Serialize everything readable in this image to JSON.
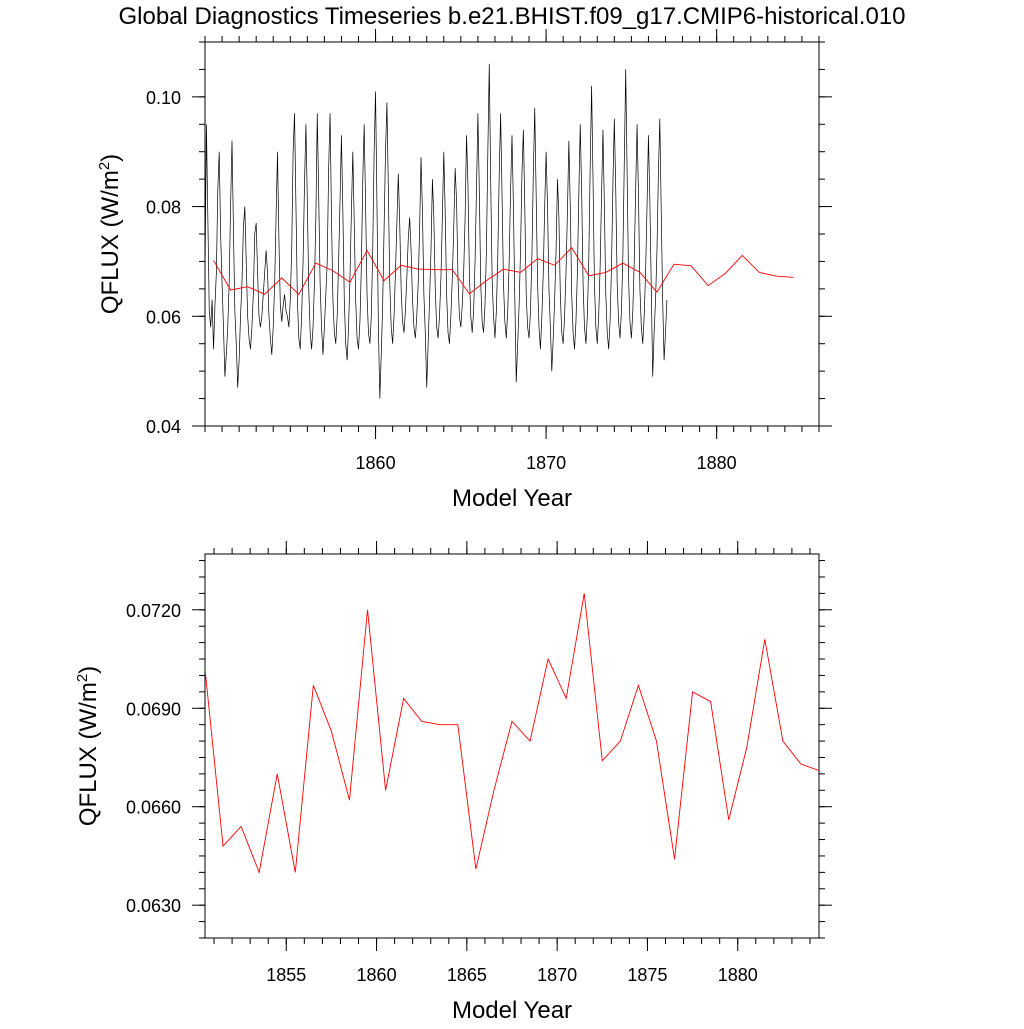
{
  "title": "Global Diagnostics Timeseries b.e21.BHIST.f09_g17.CMIP6-historical.010",
  "colors": {
    "monthly": "#000000",
    "annual": "#ff0000",
    "frame": "#000000"
  },
  "chart_data": [
    {
      "type": "line",
      "xlabel": "Model Year",
      "ylabel": "QFLUX (W/m²)",
      "ylabel_base": "QFLUX (W/m",
      "ylabel_sup": "2",
      "ylabel_close": ")",
      "xlim": [
        1850,
        1886
      ],
      "ylim": [
        0.04,
        0.11
      ],
      "x_ticks": [
        1860,
        1870,
        1880
      ],
      "x_tick_labels": [
        "1860",
        "1870",
        "1880"
      ],
      "y_ticks": [
        0.04,
        0.06,
        0.08,
        0.1
      ],
      "y_tick_labels": [
        "0.04",
        "0.06",
        "0.08",
        "0.10"
      ],
      "series": [
        {
          "kind": "monthly",
          "start_year": 1850,
          "step": 0.083333,
          "values": [
            0.067,
            0.095,
            0.078,
            0.061,
            0.058,
            0.063,
            0.054,
            0.062,
            0.068,
            0.083,
            0.09,
            0.075,
            0.066,
            0.058,
            0.049,
            0.053,
            0.058,
            0.066,
            0.08,
            0.092,
            0.076,
            0.061,
            0.055,
            0.047,
            0.052,
            0.06,
            0.066,
            0.076,
            0.08,
            0.07,
            0.06,
            0.056,
            0.054,
            0.058,
            0.064,
            0.075,
            0.077,
            0.068,
            0.06,
            0.058,
            0.06,
            0.064,
            0.068,
            0.072,
            0.068,
            0.06,
            0.056,
            0.053,
            0.058,
            0.066,
            0.078,
            0.09,
            0.074,
            0.062,
            0.059,
            0.062,
            0.064,
            0.061,
            0.06,
            0.058,
            0.063,
            0.072,
            0.09,
            0.097,
            0.08,
            0.063,
            0.056,
            0.054,
            0.06,
            0.07,
            0.084,
            0.095,
            0.081,
            0.065,
            0.057,
            0.054,
            0.058,
            0.066,
            0.078,
            0.097,
            0.082,
            0.066,
            0.058,
            0.053,
            0.058,
            0.064,
            0.07,
            0.087,
            0.097,
            0.078,
            0.063,
            0.057,
            0.055,
            0.06,
            0.07,
            0.081,
            0.093,
            0.079,
            0.063,
            0.055,
            0.052,
            0.058,
            0.067,
            0.079,
            0.09,
            0.077,
            0.063,
            0.056,
            0.054,
            0.059,
            0.069,
            0.085,
            0.095,
            0.08,
            0.064,
            0.057,
            0.055,
            0.06,
            0.072,
            0.09,
            0.101,
            0.08,
            0.058,
            0.045,
            0.053,
            0.062,
            0.076,
            0.09,
            0.099,
            0.083,
            0.066,
            0.058,
            0.055,
            0.06,
            0.068,
            0.077,
            0.086,
            0.077,
            0.065,
            0.059,
            0.057,
            0.061,
            0.067,
            0.074,
            0.078,
            0.072,
            0.063,
            0.058,
            0.056,
            0.06,
            0.066,
            0.076,
            0.089,
            0.079,
            0.064,
            0.057,
            0.047,
            0.055,
            0.063,
            0.072,
            0.085,
            0.078,
            0.065,
            0.058,
            0.056,
            0.06,
            0.067,
            0.078,
            0.09,
            0.079,
            0.064,
            0.057,
            0.055,
            0.06,
            0.067,
            0.076,
            0.087,
            0.081,
            0.067,
            0.06,
            0.058,
            0.062,
            0.068,
            0.078,
            0.093,
            0.084,
            0.068,
            0.06,
            0.057,
            0.061,
            0.07,
            0.083,
            0.097,
            0.083,
            0.066,
            0.059,
            0.057,
            0.062,
            0.072,
            0.09,
            0.106,
            0.085,
            0.067,
            0.06,
            0.056,
            0.061,
            0.071,
            0.086,
            0.097,
            0.082,
            0.066,
            0.059,
            0.056,
            0.061,
            0.07,
            0.083,
            0.093,
            0.08,
            0.063,
            0.048,
            0.055,
            0.062,
            0.072,
            0.086,
            0.094,
            0.08,
            0.064,
            0.058,
            0.056,
            0.061,
            0.071,
            0.086,
            0.098,
            0.082,
            0.066,
            0.058,
            0.054,
            0.06,
            0.068,
            0.08,
            0.09,
            0.08,
            0.065,
            0.058,
            0.05,
            0.056,
            0.063,
            0.072,
            0.085,
            0.078,
            0.064,
            0.057,
            0.055,
            0.06,
            0.068,
            0.079,
            0.092,
            0.08,
            0.064,
            0.057,
            0.054,
            0.059,
            0.068,
            0.082,
            0.095,
            0.083,
            0.066,
            0.058,
            0.055,
            0.06,
            0.07,
            0.087,
            0.102,
            0.085,
            0.066,
            0.058,
            0.055,
            0.06,
            0.069,
            0.082,
            0.094,
            0.08,
            0.064,
            0.057,
            0.054,
            0.059,
            0.069,
            0.084,
            0.096,
            0.083,
            0.066,
            0.059,
            0.056,
            0.061,
            0.071,
            0.088,
            0.105,
            0.086,
            0.067,
            0.059,
            0.056,
            0.061,
            0.07,
            0.083,
            0.095,
            0.082,
            0.065,
            0.058,
            0.055,
            0.06,
            0.068,
            0.08,
            0.093,
            0.081,
            0.065,
            0.049,
            0.057,
            0.063,
            0.072,
            0.086,
            0.096,
            0.079,
            0.063,
            0.052,
            0.057,
            0.063
          ]
        },
        {
          "kind": "annual",
          "x": [
            1850.5,
            1851.5,
            1852.5,
            1853.5,
            1854.5,
            1855.5,
            1856.5,
            1857.5,
            1858.5,
            1859.5,
            1860.5,
            1861.5,
            1862.5,
            1863.5,
            1864.5,
            1865.5,
            1866.5,
            1867.5,
            1868.5,
            1869.5,
            1870.5,
            1871.5,
            1872.5,
            1873.5,
            1874.5,
            1875.5,
            1876.5,
            1877.5,
            1878.5,
            1879.5,
            1880.5,
            1881.5,
            1882.5,
            1883.5,
            1884.5
          ],
          "values": [
            0.0702,
            0.0648,
            0.0654,
            0.064,
            0.067,
            0.064,
            0.0697,
            0.0683,
            0.0662,
            0.072,
            0.0665,
            0.0693,
            0.0686,
            0.0685,
            0.0685,
            0.0641,
            0.0665,
            0.0686,
            0.068,
            0.0705,
            0.0693,
            0.0725,
            0.0674,
            0.068,
            0.0697,
            0.068,
            0.0644,
            0.0695,
            0.0692,
            0.0656,
            0.0678,
            0.0711,
            0.068,
            0.0673,
            0.0671
          ]
        }
      ]
    },
    {
      "type": "line",
      "xlabel": "Model Year",
      "ylabel": "QFLUX (W/m²)",
      "ylabel_base": "QFLUX (W/m",
      "ylabel_sup": "2",
      "ylabel_close": ")",
      "xlim": [
        1850.5,
        1884.5
      ],
      "ylim": [
        0.062,
        0.0737
      ],
      "x_ticks": [
        1855,
        1860,
        1865,
        1870,
        1875,
        1880
      ],
      "x_tick_labels": [
        "1855",
        "1860",
        "1865",
        "1870",
        "1875",
        "1880"
      ],
      "y_ticks": [
        0.063,
        0.066,
        0.069,
        0.072
      ],
      "y_tick_labels": [
        "0.0630",
        "0.0660",
        "0.0690",
        "0.0720"
      ],
      "series": [
        {
          "kind": "annual",
          "x": [
            1850.5,
            1851.5,
            1852.5,
            1853.5,
            1854.5,
            1855.5,
            1856.5,
            1857.5,
            1858.5,
            1859.5,
            1860.5,
            1861.5,
            1862.5,
            1863.5,
            1864.5,
            1865.5,
            1866.5,
            1867.5,
            1868.5,
            1869.5,
            1870.5,
            1871.5,
            1872.5,
            1873.5,
            1874.5,
            1875.5,
            1876.5,
            1877.5,
            1878.5,
            1879.5,
            1880.5,
            1881.5,
            1882.5,
            1883.5,
            1884.5
          ],
          "values": [
            0.0702,
            0.0648,
            0.0654,
            0.064,
            0.067,
            0.064,
            0.0697,
            0.0683,
            0.0662,
            0.072,
            0.0665,
            0.0693,
            0.0686,
            0.0685,
            0.0685,
            0.0641,
            0.0665,
            0.0686,
            0.068,
            0.0705,
            0.0693,
            0.0725,
            0.0674,
            0.068,
            0.0697,
            0.068,
            0.0644,
            0.0695,
            0.0692,
            0.0656,
            0.0678,
            0.0711,
            0.068,
            0.0673,
            0.0671
          ]
        }
      ]
    }
  ]
}
